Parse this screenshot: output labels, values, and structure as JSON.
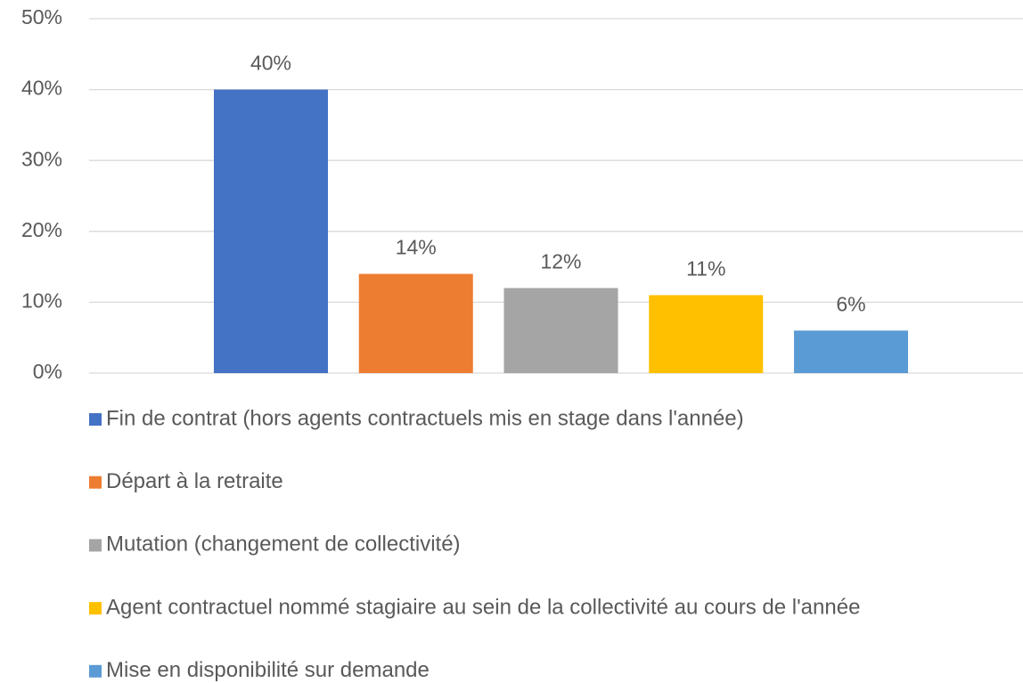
{
  "chart_data": {
    "type": "bar",
    "categories": [
      null
    ],
    "series": [
      {
        "name": "Fin de contrat (hors agents contractuels mis en stage dans l'année)",
        "color": "#4472c4",
        "values": [
          40
        ],
        "value_labels": [
          "40%"
        ]
      },
      {
        "name": "Départ à la retraite",
        "color": "#ed7d31",
        "values": [
          14
        ],
        "value_labels": [
          "14%"
        ]
      },
      {
        "name": "Mutation (changement de collectivité)",
        "color": "#a5a5a5",
        "values": [
          12
        ],
        "value_labels": [
          "12%"
        ]
      },
      {
        "name": "Agent contractuel nommé stagiaire au sein de la collectivité au cours de l'année",
        "color": "#ffc000",
        "values": [
          11
        ],
        "value_labels": [
          "11%"
        ]
      },
      {
        "name": "Mise en disponibilité sur demande",
        "color": "#5b9bd5",
        "values": [
          6
        ],
        "value_labels": [
          "6%"
        ]
      }
    ],
    "ylim": [
      0,
      50
    ],
    "yticks": [
      {
        "value": 0,
        "label": "0%"
      },
      {
        "value": 10,
        "label": "10%"
      },
      {
        "value": 20,
        "label": "20%"
      },
      {
        "value": 30,
        "label": "30%"
      },
      {
        "value": 40,
        "label": "40%"
      },
      {
        "value": 50,
        "label": "50%"
      }
    ],
    "grid": true,
    "legend": "bottom"
  }
}
